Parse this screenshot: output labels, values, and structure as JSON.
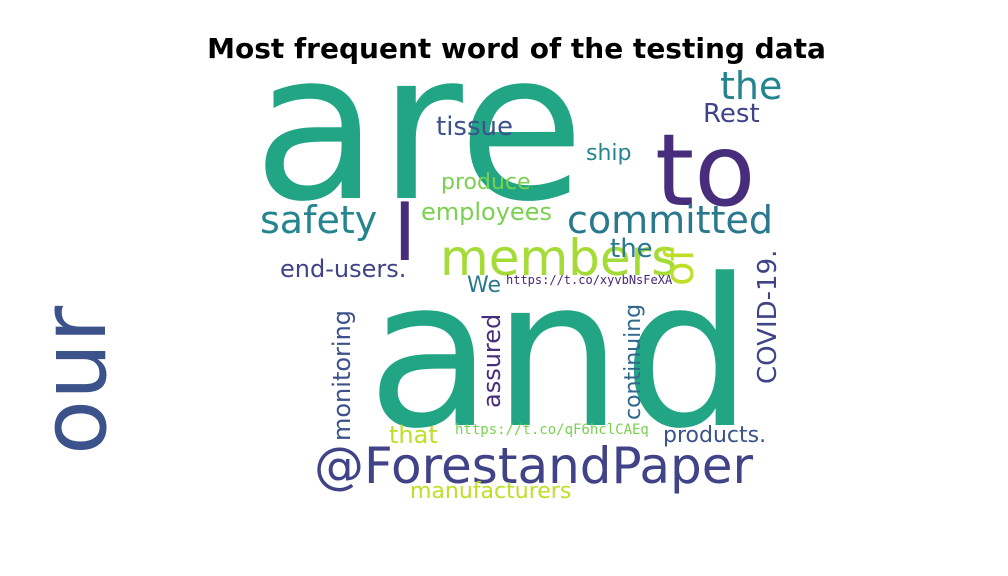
{
  "title": "Most frequent word of the testing data",
  "palette": {
    "teal": "#21a585",
    "purple": "#472d7b",
    "blue": "#3b528b",
    "slate": "#404387",
    "cyan": "#2a788e",
    "sea": "#25858e",
    "lime": "#a5db36",
    "green": "#7ad151",
    "yellow": "#bddf26",
    "deep": "#482677",
    "mid": "#31688e"
  },
  "words": [
    {
      "id": "are",
      "text": "are",
      "color": "teal"
    },
    {
      "id": "and",
      "text": "and",
      "color": "teal"
    },
    {
      "id": "our",
      "text": "our",
      "color": "blue"
    },
    {
      "id": "to",
      "text": "to",
      "color": "purple"
    },
    {
      "id": "I",
      "text": "I",
      "color": "purple"
    },
    {
      "id": "members",
      "text": "members",
      "color": "lime"
    },
    {
      "id": "forestandpaper",
      "text": "@ForestandPaper",
      "color": "slate"
    },
    {
      "id": "committed",
      "text": "committed",
      "color": "cyan"
    },
    {
      "id": "safety",
      "text": "safety",
      "color": "sea"
    },
    {
      "id": "the-top",
      "text": "the",
      "color": "sea"
    },
    {
      "id": "the-mid",
      "text": "the",
      "color": "cyan"
    },
    {
      "id": "of",
      "text": "of",
      "color": "yellow"
    },
    {
      "id": "covid",
      "text": "COVID-19.",
      "color": "slate"
    },
    {
      "id": "tissue",
      "text": "tissue",
      "color": "blue"
    },
    {
      "id": "rest",
      "text": "Rest",
      "color": "slate"
    },
    {
      "id": "ship",
      "text": "ship",
      "color": "sea"
    },
    {
      "id": "produce",
      "text": "produce",
      "color": "green"
    },
    {
      "id": "employees",
      "text": "employees",
      "color": "green"
    },
    {
      "id": "end-users",
      "text": "end-users.",
      "color": "slate"
    },
    {
      "id": "we",
      "text": "We",
      "color": "cyan"
    },
    {
      "id": "url1",
      "text": "https://t.co/xyvbNsFeXA",
      "color": "deep"
    },
    {
      "id": "monitoring",
      "text": "monitoring",
      "color": "blue"
    },
    {
      "id": "assured",
      "text": "assured",
      "color": "purple"
    },
    {
      "id": "continuing",
      "text": "continuing",
      "color": "mid"
    },
    {
      "id": "that",
      "text": "that",
      "color": "yellow"
    },
    {
      "id": "url2",
      "text": "https://t.co/qF6hclCAEq",
      "color": "green"
    },
    {
      "id": "products",
      "text": "products.",
      "color": "blue"
    },
    {
      "id": "manufacturers",
      "text": "manufacturers",
      "color": "yellow"
    }
  ]
}
